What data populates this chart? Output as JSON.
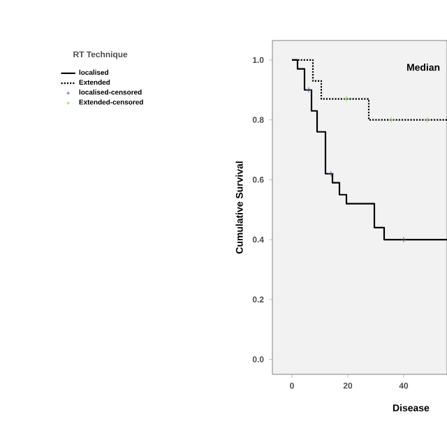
{
  "chart_data": {
    "type": "step",
    "xlabel": "Disease",
    "ylabel": "Cumulative Survival",
    "legend_title": "RT Technique",
    "annotations": [
      "Median"
    ],
    "xlim": [
      -7,
      55.5
    ],
    "ylim": [
      -0.05,
      1.065
    ],
    "xticks": [
      0,
      20,
      40
    ],
    "yticks": [
      {
        "value": 0,
        "label": "0.0"
      },
      0.2,
      0.4,
      0.6,
      0.8,
      {
        "value": 1,
        "label": "1.0"
      }
    ],
    "legend": "left",
    "grid": false,
    "series": [
      {
        "name": "localised",
        "color": "#000000",
        "line_style": "solid",
        "x": [
          0,
          2,
          4.5,
          7,
          9,
          12,
          14.5,
          17,
          19.5,
          29.5,
          33,
          55.5
        ],
        "values": [
          1.0,
          0.97,
          0.9,
          0.83,
          0.76,
          0.62,
          0.59,
          0.55,
          0.52,
          0.44,
          0.4,
          0.4
        ]
      },
      {
        "name": "Extended",
        "color": "#000000",
        "line_style": "dotted",
        "x": [
          0,
          7.5,
          10.5,
          27.5,
          55.5
        ],
        "values": [
          1.0,
          0.93,
          0.87,
          0.8,
          0.8
        ]
      },
      {
        "name": "localised-censored",
        "type": "scatter",
        "color": "#3a4fa0",
        "marker": "cross",
        "x": [
          6,
          14,
          40
        ],
        "values": [
          0.9,
          0.62,
          0.4
        ]
      },
      {
        "name": "Extended-censored",
        "type": "scatter",
        "color": "#7ccc5a",
        "marker": "cross",
        "x": [
          19.5,
          35.5,
          48.5
        ],
        "values": [
          0.87,
          0.8,
          0.8
        ]
      }
    ]
  }
}
